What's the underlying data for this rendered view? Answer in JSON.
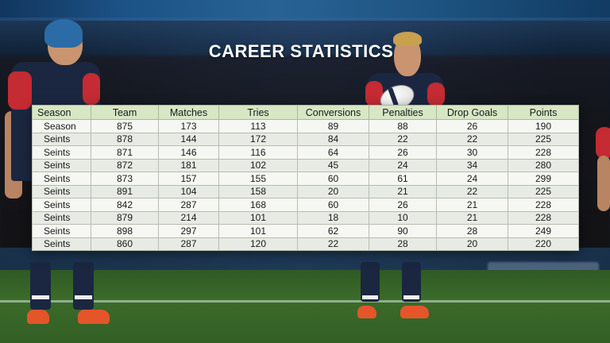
{
  "title": "CAREER STATISTICS",
  "colors": {
    "header_bg": "#d7e7c4",
    "jersey_navy": "#1b2740",
    "jersey_red": "#c42b33",
    "boot_orange": "#e4552a"
  },
  "table": {
    "headers": [
      "Season",
      "Team",
      "Matches",
      "Tries",
      "Conversions",
      "Penalties",
      "Drop Goals",
      "Points"
    ],
    "rows": [
      [
        "Season",
        "875",
        "173",
        "113",
        "89",
        "88",
        "26",
        "190"
      ],
      [
        "Seints",
        "878",
        "144",
        "172",
        "84",
        "22",
        "22",
        "225"
      ],
      [
        "Seints",
        "871",
        "146",
        "116",
        "64",
        "26",
        "30",
        "228"
      ],
      [
        "Seints",
        "872",
        "181",
        "102",
        "45",
        "24",
        "34",
        "280"
      ],
      [
        "Seints",
        "873",
        "157",
        "155",
        "60",
        "61",
        "24",
        "299"
      ],
      [
        "Seints",
        "891",
        "104",
        "158",
        "20",
        "21",
        "22",
        "225"
      ],
      [
        "Seints",
        "842",
        "287",
        "168",
        "60",
        "26",
        "21",
        "228"
      ],
      [
        "Seints",
        "879",
        "214",
        "101",
        "18",
        "10",
        "21",
        "228"
      ],
      [
        "Seints",
        "898",
        "297",
        "101",
        "62",
        "90",
        "28",
        "249"
      ],
      [
        "Seints",
        "860",
        "287",
        "120",
        "22",
        "28",
        "20",
        "220"
      ]
    ]
  }
}
